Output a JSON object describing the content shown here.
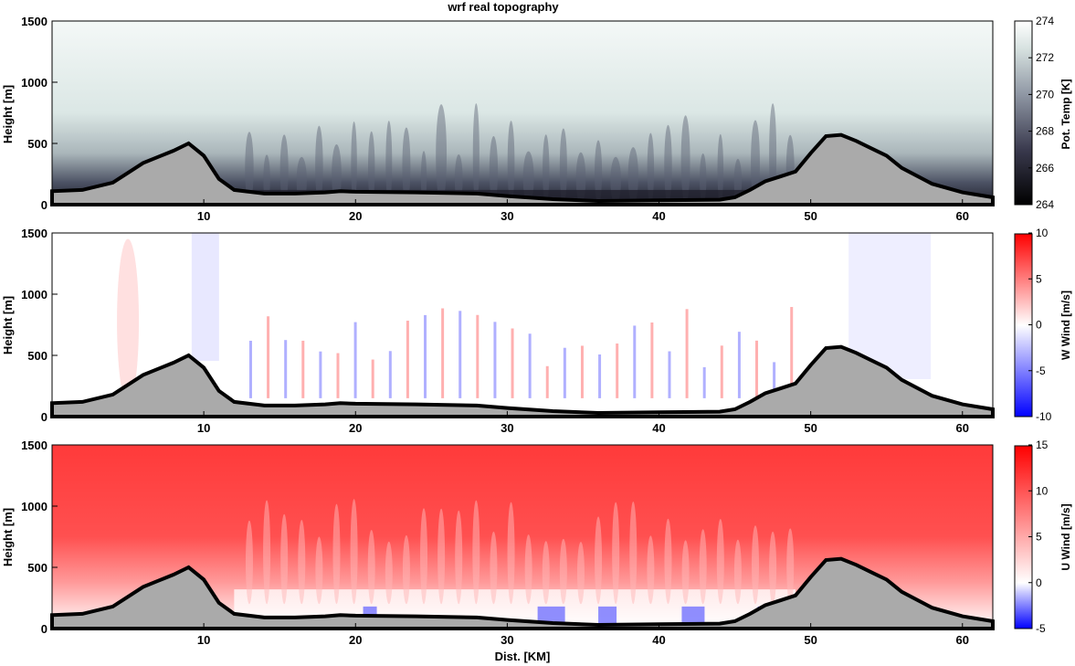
{
  "title": "wrf real topography",
  "xlabel": "Dist. [KM]",
  "chart_data": [
    {
      "type": "heatmap",
      "title": "wrf real topography",
      "variable": "potential-temperature",
      "ylabel": "Height [m]",
      "colorbar_label": "Pot. Temp [K]",
      "colormap": "bone",
      "xlim": [
        0,
        62
      ],
      "ylim": [
        0,
        1500
      ],
      "clim": [
        264,
        274
      ],
      "xticks": [
        "10",
        "20",
        "30",
        "40",
        "50",
        "60"
      ],
      "yticks": [
        "0",
        "500",
        "1000",
        "1500"
      ],
      "cticks": [
        "264",
        "266",
        "268",
        "270",
        "272",
        "274"
      ],
      "colors": {
        "cold": "#1a1a24",
        "mid": "#6b7284",
        "warm": "#f4f8f7"
      }
    },
    {
      "type": "heatmap",
      "variable": "vertical-wind",
      "ylabel": "Height [m]",
      "colorbar_label": "W Wind [m/s]",
      "colormap": "blue-white-red",
      "xlim": [
        0,
        62
      ],
      "ylim": [
        0,
        1500
      ],
      "clim": [
        -10,
        10
      ],
      "xticks": [
        "10",
        "20",
        "30",
        "40",
        "50",
        "60"
      ],
      "yticks": [
        "0",
        "500",
        "1000",
        "1500"
      ],
      "cticks": [
        "-10",
        "-5",
        "0",
        "5",
        "10"
      ],
      "colors": {
        "negative": "#0000ff",
        "zero": "#ffffff",
        "positive": "#ff0000"
      }
    },
    {
      "type": "heatmap",
      "variable": "horizontal-wind",
      "ylabel": "Height [m]",
      "xlabel": "Dist. [KM]",
      "colorbar_label": "U Wind [m/s]",
      "colormap": "blue-white-red",
      "xlim": [
        0,
        62
      ],
      "ylim": [
        0,
        1500
      ],
      "clim": [
        -5,
        15
      ],
      "xticks": [
        "10",
        "20",
        "30",
        "40",
        "50",
        "60"
      ],
      "yticks": [
        "0",
        "500",
        "1000",
        "1500"
      ],
      "cticks": [
        "-5",
        "0",
        "5",
        "10",
        "15"
      ],
      "colors": {
        "negative": "#0000ff",
        "zero": "#ffffff",
        "positive": "#ff2020"
      }
    }
  ],
  "terrain": {
    "fill": "#aaaaaa",
    "line": "#000000",
    "x_km": [
      0,
      2,
      4,
      5,
      6,
      7,
      8,
      9,
      10,
      11,
      12,
      14,
      16,
      18,
      19,
      20,
      24,
      28,
      30,
      33,
      36,
      40,
      44,
      45,
      46,
      47,
      48,
      49,
      50,
      51,
      52,
      53,
      54,
      55,
      56,
      58,
      60,
      62
    ],
    "height_m": [
      110,
      120,
      180,
      260,
      340,
      390,
      440,
      500,
      400,
      210,
      120,
      90,
      90,
      100,
      110,
      105,
      100,
      90,
      70,
      45,
      30,
      35,
      40,
      60,
      120,
      190,
      230,
      270,
      420,
      560,
      570,
      520,
      460,
      400,
      300,
      170,
      100,
      60
    ]
  }
}
